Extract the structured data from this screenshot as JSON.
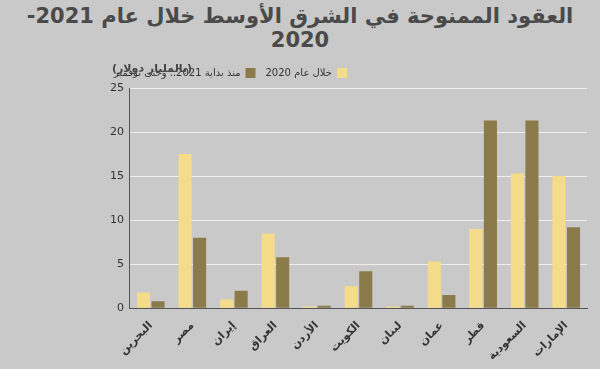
{
  "chart_data": {
    "type": "bar",
    "title": "العقود الممنوحة في الشرق الأوسط خلال عام 2021-2020",
    "y_label": "(بالمليار دولار)",
    "categories": [
      "البحرين",
      "مصر",
      "إيران",
      "العراق",
      "الأردن",
      "الكويت",
      "لبنان",
      "عمان",
      "قطر",
      "السعودية",
      "الإمارات"
    ],
    "series": [
      {
        "name": "خلال عام 2020",
        "color": "#f5dc8a",
        "values": [
          1.8,
          17.5,
          1.0,
          8.5,
          0.2,
          2.5,
          0.2,
          5.3,
          9.0,
          15.3,
          15.0
        ]
      },
      {
        "name": "منذ بداية 2021.. وحتى نوفمبر",
        "color": "#8b7b4b",
        "values": [
          0.8,
          8.0,
          2.0,
          5.8,
          0.3,
          4.2,
          0.3,
          1.5,
          21.3,
          21.3,
          9.2
        ]
      }
    ],
    "ylim": [
      0,
      25
    ],
    "yticks": [
      0,
      5,
      10,
      15,
      20,
      25
    ],
    "grid": true,
    "legend": "top"
  }
}
